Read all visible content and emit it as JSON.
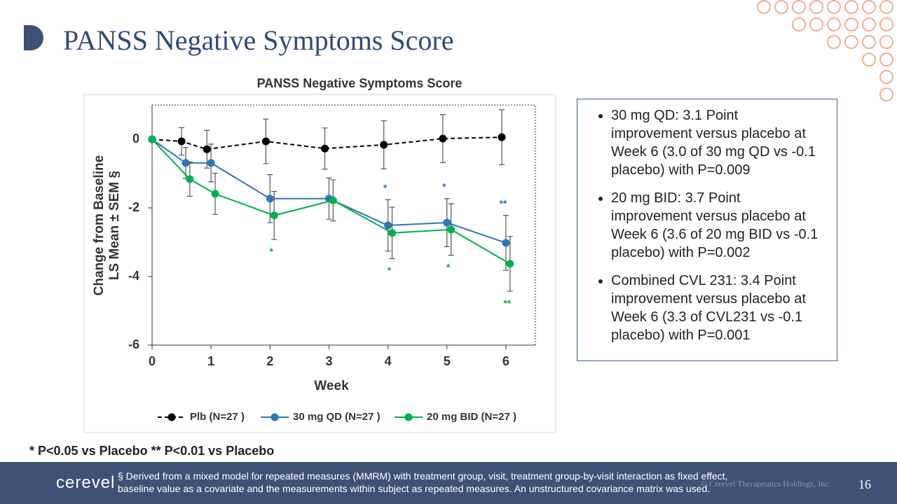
{
  "slide": {
    "title": "PANSS Negative Symptoms Score",
    "bullets": [
      "30 mg QD: 3.1 Point improvement versus placebo at Week 6 (3.0 of 30 mg QD vs -0.1 placebo) with P=0.009",
      "20 mg BID: 3.7 Point improvement versus placebo at Week 6 (3.6 of 20 mg BID vs -0.1 placebo) with P=0.002",
      "Combined CVL 231: 3.4 Point improvement versus placebo at Week 6 (3.3 of CVL231 vs -0.1 placebo) with P=0.001"
    ],
    "significance_note": "*    P<0.05 vs Placebo  **  P<0.01 vs Placebo",
    "footnote": "§ Derived from a mixed model for repeated measures (MMRM) with treatment group, visit, treatment group-by-visit interaction as fixed effect, baseline value as a covariate and the measurements within subject as repeated measures. An unstructured covariance matrix was used.",
    "logo": "cerevel",
    "copyright": "© Cerevel Therapeutics Holdings, Inc.",
    "page_number": "16"
  },
  "chart_data": {
    "type": "line",
    "title": "PANSS Negative Symptoms Score",
    "xlabel": "Week",
    "ylabel": [
      "Change from Baseline",
      "LS Mean ± SEM §"
    ],
    "xlim": [
      0,
      6.5
    ],
    "ylim": [
      -6,
      1
    ],
    "xticks": [
      0,
      1,
      2,
      3,
      4,
      5,
      6
    ],
    "yticks": [
      -6,
      -4,
      -2,
      0
    ],
    "legend": "bottom",
    "series": [
      {
        "name": "Plb (N=27 )",
        "color": "#000000",
        "dash": true,
        "x": [
          0,
          0.5,
          0.93,
          1.93,
          2.93,
          3.93,
          4.93,
          5.93
        ],
        "values": [
          0,
          -0.06,
          -0.29,
          -0.06,
          -0.27,
          -0.16,
          0.02,
          0.06
        ],
        "errors": [
          0,
          0.4,
          0.55,
          0.65,
          0.6,
          0.7,
          0.7,
          0.8
        ],
        "significance": [
          null,
          null,
          null,
          null,
          null,
          null,
          null,
          null
        ]
      },
      {
        "name": "30 mg QD (N=27 )",
        "color": "#2e75b6",
        "dash": false,
        "x": [
          0,
          0.57,
          1,
          2,
          3,
          4,
          5,
          6
        ],
        "values": [
          0,
          -0.69,
          -0.69,
          -1.73,
          -1.73,
          -2.51,
          -2.43,
          -3.02
        ],
        "errors": [
          0,
          0.45,
          0.55,
          0.7,
          0.6,
          0.75,
          0.7,
          0.8
        ],
        "significance": [
          null,
          null,
          null,
          null,
          null,
          "*",
          "*",
          "**"
        ]
      },
      {
        "name": "20 mg BID (N=27 )",
        "color": "#00b050",
        "dash": false,
        "x": [
          0,
          0.64,
          1.07,
          2.07,
          3.07,
          4.07,
          5.07,
          6.07
        ],
        "values": [
          0,
          -1.16,
          -1.59,
          -2.22,
          -1.78,
          -2.73,
          -2.63,
          -3.63
        ],
        "errors": [
          0,
          0.5,
          0.6,
          0.7,
          0.6,
          0.75,
          0.75,
          0.8
        ],
        "significance": [
          null,
          null,
          null,
          "*",
          null,
          "*",
          "*",
          "**"
        ]
      }
    ]
  }
}
